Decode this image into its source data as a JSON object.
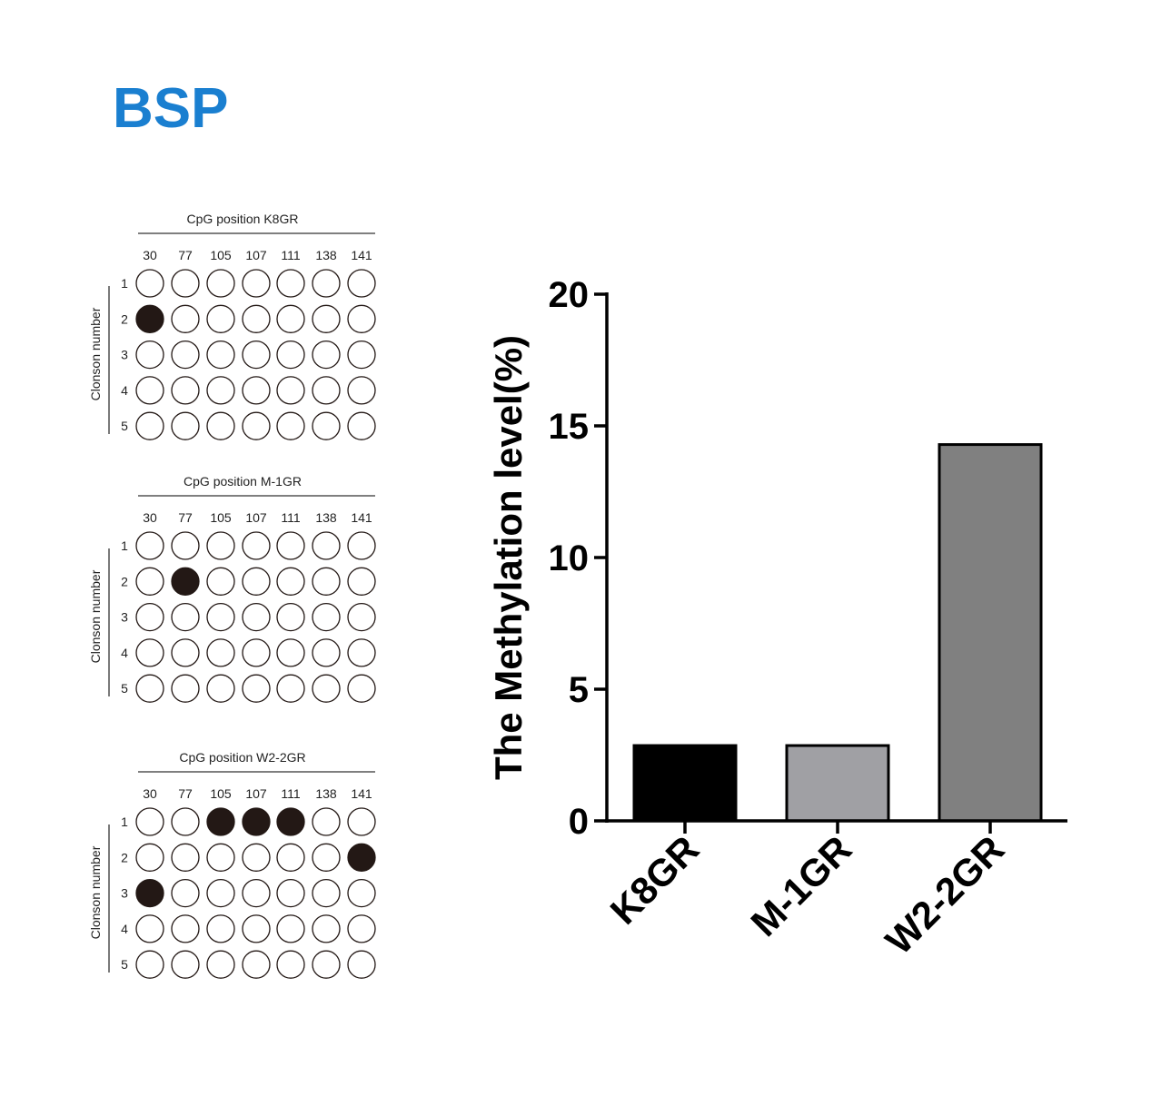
{
  "title": "BSP",
  "title_color": "#1a7fd0",
  "chart_data": [
    {
      "type": "table",
      "kind": "methylation-lollipop",
      "panels": [
        {
          "title": "CpG position  K8GR",
          "positions": [
            "30",
            "77",
            "105",
            "107",
            "111",
            "138",
            "141"
          ],
          "ylabel": "Clonson number",
          "clones": [
            "1",
            "2",
            "3",
            "4",
            "5"
          ],
          "methylated": [
            [
              0,
              0,
              0,
              0,
              0,
              0,
              0
            ],
            [
              1,
              0,
              0,
              0,
              0,
              0,
              0
            ],
            [
              0,
              0,
              0,
              0,
              0,
              0,
              0
            ],
            [
              0,
              0,
              0,
              0,
              0,
              0,
              0
            ],
            [
              0,
              0,
              0,
              0,
              0,
              0,
              0
            ]
          ]
        },
        {
          "title": "CpG position  M-1GR",
          "positions": [
            "30",
            "77",
            "105",
            "107",
            "111",
            "138",
            "141"
          ],
          "ylabel": "Clonson number",
          "clones": [
            "1",
            "2",
            "3",
            "4",
            "5"
          ],
          "methylated": [
            [
              0,
              0,
              0,
              0,
              0,
              0,
              0
            ],
            [
              0,
              1,
              0,
              0,
              0,
              0,
              0
            ],
            [
              0,
              0,
              0,
              0,
              0,
              0,
              0
            ],
            [
              0,
              0,
              0,
              0,
              0,
              0,
              0
            ],
            [
              0,
              0,
              0,
              0,
              0,
              0,
              0
            ]
          ]
        },
        {
          "title": "CpG position  W2-2GR",
          "positions": [
            "30",
            "77",
            "105",
            "107",
            "111",
            "138",
            "141"
          ],
          "ylabel": "Clonson number",
          "clones": [
            "1",
            "2",
            "3",
            "4",
            "5"
          ],
          "methylated": [
            [
              0,
              0,
              1,
              1,
              1,
              0,
              0
            ],
            [
              0,
              0,
              0,
              0,
              0,
              0,
              1
            ],
            [
              1,
              0,
              0,
              0,
              0,
              0,
              0
            ],
            [
              0,
              0,
              0,
              0,
              0,
              0,
              0
            ],
            [
              0,
              0,
              0,
              0,
              0,
              0,
              0
            ]
          ]
        }
      ]
    },
    {
      "type": "bar",
      "categories": [
        "K8GR",
        "M-1GR",
        "W2-2GR"
      ],
      "values": [
        2.86,
        2.86,
        14.29
      ],
      "colors": [
        "#000000",
        "#a0a0a4",
        "#808080"
      ],
      "ylabel": "The Methylation level(%)",
      "xlabel": "",
      "ylim": [
        0,
        20
      ],
      "yticks": [
        "0",
        "5",
        "10",
        "15",
        "20"
      ],
      "grid": false
    }
  ]
}
